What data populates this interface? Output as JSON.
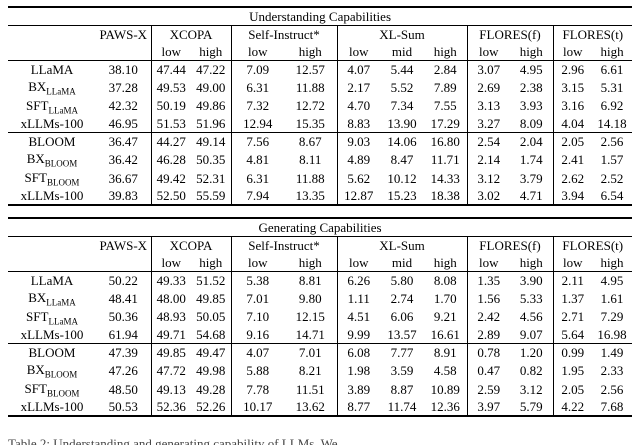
{
  "caption": {
    "text": "Table 2: Understanding and generating capability of LLMs. We ..."
  },
  "tables": [
    {
      "id": "understanding",
      "title": "Understanding Capabilities",
      "columns": [
        {
          "label": "PAWS-X",
          "subs": []
        },
        {
          "label": "XCOPA",
          "subs": [
            "low",
            "high"
          ]
        },
        {
          "label": "Self-Instruct*",
          "subs": [
            "low",
            "high"
          ]
        },
        {
          "label": "XL-Sum",
          "subs": [
            "low",
            "mid",
            "high"
          ]
        },
        {
          "label": "FLORES(f)",
          "subs": [
            "low",
            "high"
          ]
        },
        {
          "label": "FLORES(t)",
          "subs": [
            "low",
            "high"
          ]
        }
      ],
      "groups": [
        {
          "rows": [
            {
              "model": "LLaMA",
              "model_sub": "",
              "values": [
                "38.10",
                "47.44",
                "47.22",
                "7.09",
                "12.57",
                "4.07",
                "5.44",
                "2.84",
                "3.07",
                "4.95",
                "2.96",
                "6.61"
              ],
              "bold": []
            },
            {
              "model": "BX",
              "model_sub": "LLaMA",
              "values": [
                "37.28",
                "49.53",
                "49.00",
                "6.31",
                "11.88",
                "2.17",
                "5.52",
                "7.89",
                "2.69",
                "2.38",
                "3.15",
                "5.31"
              ],
              "bold": []
            },
            {
              "model": "SFT",
              "model_sub": "LLaMA",
              "values": [
                "42.32",
                "50.19",
                "49.86",
                "7.32",
                "12.72",
                "4.70",
                "7.34",
                "7.55",
                "3.13",
                "3.93",
                "3.16",
                "6.92"
              ],
              "bold": []
            },
            {
              "model": "xLLMs-100",
              "model_sub": "",
              "values": [
                "46.95",
                "51.53",
                "51.96",
                "12.94",
                "15.35",
                "8.83",
                "13.90",
                "17.29",
                "3.27",
                "8.09",
                "4.04",
                "14.18"
              ],
              "bold": [
                0,
                1,
                2,
                3,
                4,
                5,
                6,
                7,
                8,
                9,
                10,
                11
              ]
            }
          ]
        },
        {
          "rows": [
            {
              "model": "BLOOM",
              "model_sub": "",
              "values": [
                "36.47",
                "44.27",
                "49.14",
                "7.56",
                "8.67",
                "9.03",
                "14.06",
                "16.80",
                "2.54",
                "2.04",
                "2.05",
                "2.56"
              ],
              "bold": []
            },
            {
              "model": "BX",
              "model_sub": "BLOOM",
              "values": [
                "36.42",
                "46.28",
                "50.35",
                "4.81",
                "8.11",
                "4.89",
                "8.47",
                "11.71",
                "2.14",
                "1.74",
                "2.41",
                "1.57"
              ],
              "bold": []
            },
            {
              "model": "SFT",
              "model_sub": "BLOOM",
              "values": [
                "36.67",
                "49.42",
                "52.31",
                "6.31",
                "11.88",
                "5.62",
                "10.12",
                "14.33",
                "3.12",
                "3.79",
                "2.62",
                "2.52"
              ],
              "bold": [
                8
              ]
            },
            {
              "model": "xLLMs-100",
              "model_sub": "",
              "values": [
                "39.83",
                "52.50",
                "55.59",
                "7.94",
                "13.35",
                "12.87",
                "15.23",
                "18.38",
                "3.02",
                "4.71",
                "3.94",
                "6.54"
              ],
              "bold": [
                0,
                1,
                2,
                3,
                4,
                5,
                6,
                7,
                9,
                10,
                11
              ]
            }
          ]
        }
      ]
    },
    {
      "id": "generating",
      "title": "Generating Capabilities",
      "columns": [
        {
          "label": "PAWS-X",
          "subs": []
        },
        {
          "label": "XCOPA",
          "subs": [
            "low",
            "high"
          ]
        },
        {
          "label": "Self-Instruct*",
          "subs": [
            "low",
            "high"
          ]
        },
        {
          "label": "XL-Sum",
          "subs": [
            "low",
            "mid",
            "high"
          ]
        },
        {
          "label": "FLORES(f)",
          "subs": [
            "low",
            "high"
          ]
        },
        {
          "label": "FLORES(t)",
          "subs": [
            "low",
            "high"
          ]
        }
      ],
      "groups": [
        {
          "rows": [
            {
              "model": "LLaMA",
              "model_sub": "",
              "values": [
                "50.22",
                "49.33",
                "51.52",
                "5.38",
                "8.81",
                "6.26",
                "5.80",
                "8.08",
                "1.35",
                "3.90",
                "2.11",
                "4.95"
              ],
              "bold": []
            },
            {
              "model": "BX",
              "model_sub": "LLaMA",
              "values": [
                "48.41",
                "48.00",
                "49.85",
                "7.01",
                "9.80",
                "1.11",
                "2.74",
                "1.70",
                "1.56",
                "5.33",
                "1.37",
                "1.61"
              ],
              "bold": []
            },
            {
              "model": "SFT",
              "model_sub": "LLaMA",
              "values": [
                "50.36",
                "48.93",
                "50.05",
                "7.10",
                "12.15",
                "4.51",
                "6.06",
                "9.21",
                "2.42",
                "4.56",
                "2.71",
                "7.29"
              ],
              "bold": []
            },
            {
              "model": "xLLMs-100",
              "model_sub": "",
              "values": [
                "61.94",
                "49.71",
                "54.68",
                "9.16",
                "14.71",
                "9.99",
                "13.57",
                "16.61",
                "2.89",
                "9.07",
                "5.64",
                "16.98"
              ],
              "bold": [
                0,
                1,
                2,
                3,
                4,
                5,
                6,
                7,
                8,
                9,
                10,
                11
              ]
            }
          ]
        },
        {
          "rows": [
            {
              "model": "BLOOM",
              "model_sub": "",
              "values": [
                "47.39",
                "49.85",
                "49.47",
                "4.07",
                "7.01",
                "6.08",
                "7.77",
                "8.91",
                "0.78",
                "1.20",
                "0.99",
                "1.49"
              ],
              "bold": []
            },
            {
              "model": "BX",
              "model_sub": "BLOOM",
              "values": [
                "47.26",
                "47.72",
                "49.98",
                "5.88",
                "8.21",
                "1.98",
                "3.59",
                "4.58",
                "0.47",
                "0.82",
                "1.95",
                "2.33"
              ],
              "bold": []
            },
            {
              "model": "SFT",
              "model_sub": "BLOOM",
              "values": [
                "48.50",
                "49.13",
                "49.28",
                "7.78",
                "11.51",
                "3.89",
                "8.87",
                "10.89",
                "2.59",
                "3.12",
                "2.05",
                "2.56"
              ],
              "bold": []
            },
            {
              "model": "xLLMs-100",
              "model_sub": "",
              "values": [
                "50.53",
                "52.36",
                "52.26",
                "10.17",
                "13.62",
                "8.77",
                "11.74",
                "12.36",
                "3.97",
                "5.79",
                "4.22",
                "7.68"
              ],
              "bold": [
                0,
                1,
                2,
                3,
                4,
                5,
                6,
                7,
                8,
                9,
                10,
                11
              ]
            }
          ]
        }
      ]
    }
  ]
}
